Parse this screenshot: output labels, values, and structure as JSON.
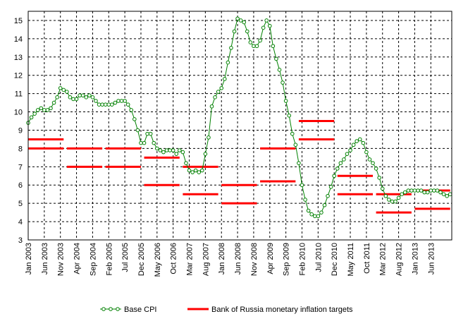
{
  "chart_data": {
    "type": "line",
    "title": "",
    "xlabel": "",
    "ylabel": "",
    "ylim": [
      3,
      15.5
    ],
    "yticks": [
      "3",
      "4",
      "5",
      "6",
      "7",
      "8",
      "9",
      "10",
      "11",
      "12",
      "13",
      "14",
      "15"
    ],
    "x_start": "2003-01",
    "x_end": "2013-12",
    "xtick_labels": [
      "Jan 2003",
      "Jun 2003",
      "Nov 2003",
      "Apr 2004",
      "Sep 2004",
      "Feb 2005",
      "Jul 2005",
      "Dec 2005",
      "May 2006",
      "Oct 2006",
      "Mar 2007",
      "Aug 2007",
      "Jan 2008",
      "Jun 2008",
      "Nov 2008",
      "Apr 2009",
      "Sep 2009",
      "Feb 2010",
      "Jul 2010",
      "Dec 2010",
      "May 2011",
      "Oct 2011",
      "Mar 2012",
      "Aug 2012",
      "Jan 2013",
      "Jun 2013"
    ],
    "grid": true,
    "legend_position": "bottom",
    "series": [
      {
        "name": "Base CPI",
        "color": "#008000",
        "marker": "open-circle",
        "values": [
          9.4,
          9.7,
          9.9,
          10.1,
          10.2,
          10.1,
          10.1,
          10.2,
          10.5,
          10.8,
          11.3,
          11.2,
          11.1,
          10.8,
          10.7,
          10.7,
          10.9,
          10.9,
          10.8,
          10.9,
          10.8,
          10.6,
          10.4,
          10.4,
          10.4,
          10.4,
          10.4,
          10.5,
          10.6,
          10.6,
          10.6,
          10.4,
          10.1,
          9.6,
          9.0,
          8.3,
          8.3,
          8.8,
          8.8,
          8.3,
          8.0,
          7.9,
          7.8,
          7.9,
          7.9,
          7.9,
          7.7,
          7.9,
          7.8,
          7.2,
          6.8,
          6.7,
          6.8,
          6.7,
          6.8,
          7.7,
          8.6,
          10.3,
          10.8,
          11.1,
          11.3,
          11.8,
          12.7,
          13.5,
          14.4,
          15.1,
          15.0,
          14.9,
          14.4,
          13.8,
          13.6,
          13.6,
          13.9,
          14.6,
          15.0,
          14.7,
          13.6,
          12.9,
          12.3,
          11.6,
          10.6,
          9.8,
          8.8,
          8.2,
          7.2,
          6.0,
          5.2,
          4.6,
          4.4,
          4.3,
          4.3,
          4.5,
          4.9,
          5.4,
          5.9,
          6.5,
          6.9,
          7.2,
          7.4,
          7.7,
          7.9,
          8.2,
          8.4,
          8.5,
          8.3,
          7.8,
          7.4,
          7.2,
          6.9,
          6.4,
          5.8,
          5.4,
          5.2,
          5.1,
          5.1,
          5.3,
          5.5,
          5.6,
          5.7,
          5.7,
          5.7,
          5.7,
          5.7,
          5.6,
          5.6,
          5.7,
          5.7,
          5.7,
          5.6,
          5.5,
          5.4,
          5.5
        ]
      },
      {
        "name": "Bank of Russia monetary inflation targets",
        "color": "#ff0000",
        "segments": [
          {
            "year": 2003,
            "lower": 8.0,
            "upper": 8.5
          },
          {
            "year": 2004,
            "lower": 7.0,
            "upper": 8.0
          },
          {
            "year": 2005,
            "lower": 7.0,
            "upper": 8.0
          },
          {
            "year": 2006,
            "lower": 6.0,
            "upper": 7.5
          },
          {
            "year": 2007,
            "lower": 5.5,
            "upper": 7.0
          },
          {
            "year": 2008,
            "lower": 5.0,
            "upper": 6.0
          },
          {
            "year": 2009,
            "lower": 6.2,
            "upper": 8.0
          },
          {
            "year": 2010,
            "lower": 8.5,
            "upper": 9.5
          },
          {
            "year": 2011,
            "lower": 5.5,
            "upper": 6.5
          },
          {
            "year": 2012,
            "lower": 4.5,
            "upper": 5.5
          },
          {
            "year": 2013,
            "lower": 4.7,
            "upper": 5.7
          }
        ]
      }
    ]
  }
}
